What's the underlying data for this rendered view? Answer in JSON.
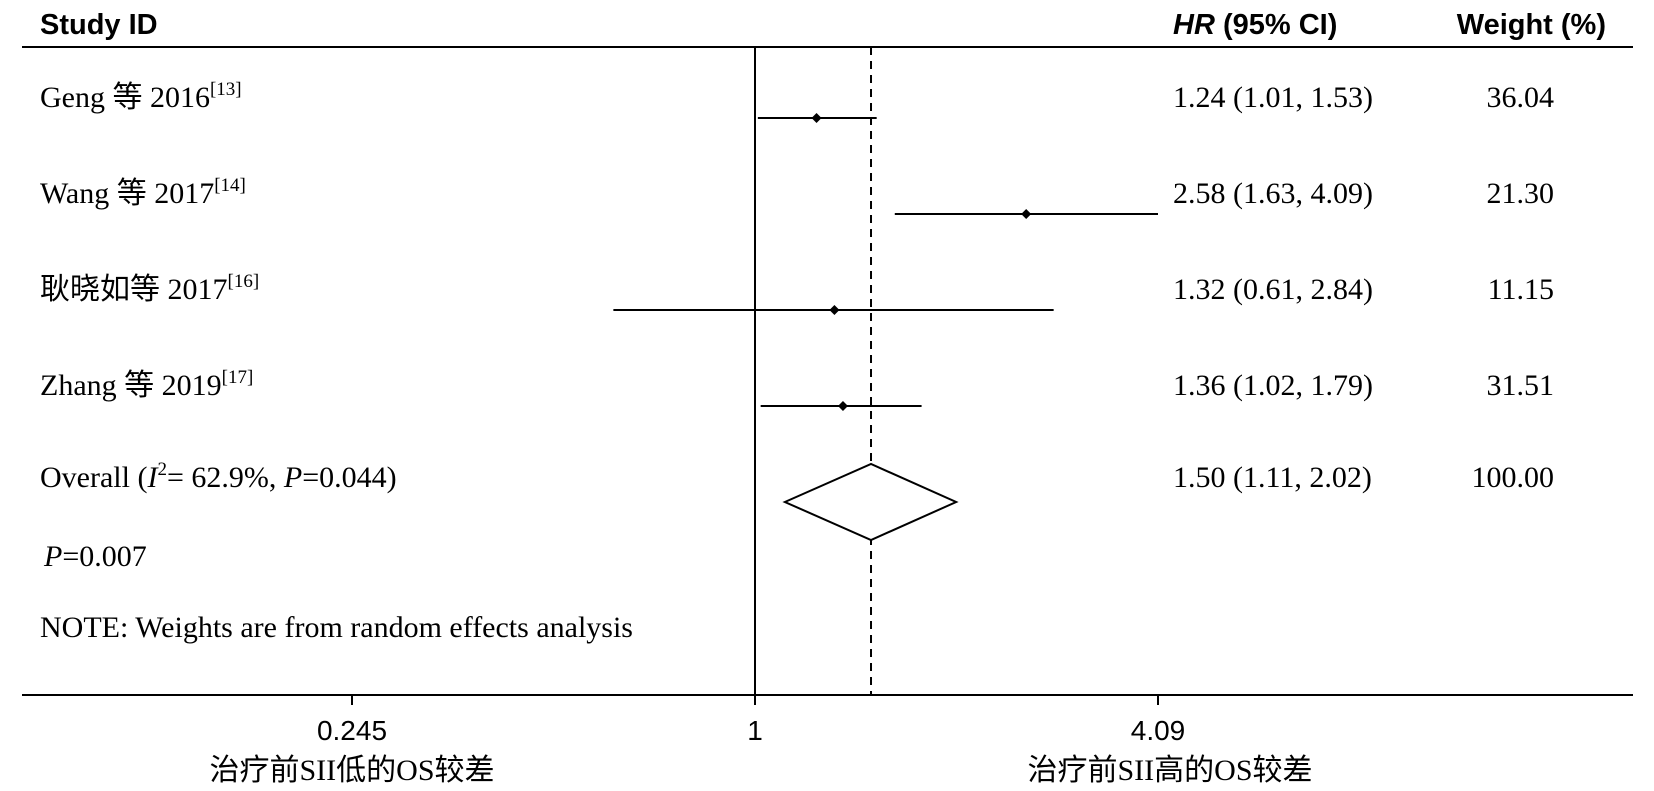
{
  "chart_data": {
    "type": "forest",
    "header": {
      "study": "Study ID",
      "hr_italic": "HR",
      "hr_rest": " (95% CI)",
      "weight": "Weight (%)"
    },
    "x_scale": "log",
    "xlim": [
      0.245,
      4.09
    ],
    "ticks": [
      "0.245",
      "1",
      "4.09"
    ],
    "null_line": 1,
    "studies": [
      {
        "label": "Geng 等 2016",
        "ref": "[13]",
        "hr": 1.24,
        "lo": 1.01,
        "hi": 1.53,
        "ci_text": "1.24 (1.01, 1.53)",
        "weight": "36.04"
      },
      {
        "label": "Wang 等 2017",
        "ref": "[14]",
        "hr": 2.58,
        "lo": 1.63,
        "hi": 4.09,
        "ci_text": "2.58 (1.63, 4.09)",
        "weight": "21.30"
      },
      {
        "label": "耿晓如等 2017",
        "ref": "[16]",
        "hr": 1.32,
        "lo": 0.61,
        "hi": 2.84,
        "ci_text": "1.32 (0.61, 2.84)",
        "weight": "11.15"
      },
      {
        "label": "Zhang 等 2019",
        "ref": "[17]",
        "hr": 1.36,
        "lo": 1.02,
        "hi": 1.79,
        "ci_text": "1.36 (1.02, 1.79)",
        "weight": "31.51"
      }
    ],
    "overall": {
      "label_prefix": "Overall  (",
      "i_italic": "I",
      "i_sup": "2",
      "label_mid": "= 62.9%, ",
      "p_italic": "P",
      "label_end": "=0.044)",
      "hr": 1.5,
      "lo": 1.11,
      "hi": 2.02,
      "ci_text": "1.50 (1.11, 2.02)",
      "weight": "100.00"
    },
    "p_value": {
      "italic": "P",
      "rest": "=0.007"
    },
    "note": "NOTE: Weights are from random effects analysis",
    "xlabel_left": "治疗前SII低的OS较差",
    "xlabel_right": "治疗前SII高的OS较差"
  }
}
